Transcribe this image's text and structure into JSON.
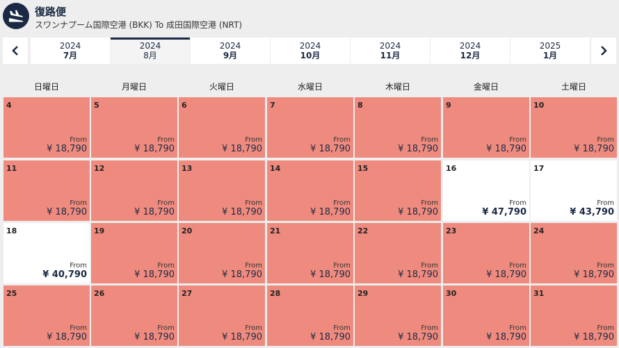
{
  "header": {
    "title": "復路便",
    "route": "スワンナプーム国際空港 (BKK) To 成田国際空港 (NRT)"
  },
  "months": [
    {
      "year": "2024",
      "month": "7月",
      "active": false
    },
    {
      "year": "2024",
      "month": "8月",
      "active": true
    },
    {
      "year": "2024",
      "month": "9月",
      "active": false
    },
    {
      "year": "2024",
      "month": "10月",
      "active": false
    },
    {
      "year": "2024",
      "month": "11月",
      "active": false
    },
    {
      "year": "2024",
      "month": "12月",
      "active": false
    },
    {
      "year": "2025",
      "month": "1月",
      "active": false
    }
  ],
  "weekdays": [
    "日曜日",
    "月曜日",
    "火曜日",
    "水曜日",
    "木曜日",
    "金曜日",
    "土曜日"
  ],
  "from_label": "From",
  "colors": {
    "navy": "#1b2a44",
    "unavailable": "#ef8b7e",
    "available": "#ffffff"
  },
  "weeks": [
    [
      {
        "day": "4",
        "price": "¥ 18,790",
        "available": false
      },
      {
        "day": "5",
        "price": "¥ 18,790",
        "available": false
      },
      {
        "day": "6",
        "price": "¥ 18,790",
        "available": false
      },
      {
        "day": "7",
        "price": "¥ 18,790",
        "available": false
      },
      {
        "day": "8",
        "price": "¥ 18,790",
        "available": false
      },
      {
        "day": "9",
        "price": "¥ 18,790",
        "available": false
      },
      {
        "day": "10",
        "price": "¥ 18,790",
        "available": false
      }
    ],
    [
      {
        "day": "11",
        "price": "¥ 18,790",
        "available": false
      },
      {
        "day": "12",
        "price": "¥ 18,790",
        "available": false
      },
      {
        "day": "13",
        "price": "¥ 18,790",
        "available": false
      },
      {
        "day": "14",
        "price": "¥ 18,790",
        "available": false
      },
      {
        "day": "15",
        "price": "¥ 18,790",
        "available": false
      },
      {
        "day": "16",
        "price": "¥ 47,790",
        "available": true
      },
      {
        "day": "17",
        "price": "¥ 43,790",
        "available": true
      }
    ],
    [
      {
        "day": "18",
        "price": "¥ 40,790",
        "available": true
      },
      {
        "day": "19",
        "price": "¥ 18,790",
        "available": false
      },
      {
        "day": "20",
        "price": "¥ 18,790",
        "available": false
      },
      {
        "day": "21",
        "price": "¥ 18,790",
        "available": false
      },
      {
        "day": "22",
        "price": "¥ 18,790",
        "available": false
      },
      {
        "day": "23",
        "price": "¥ 18,790",
        "available": false
      },
      {
        "day": "24",
        "price": "¥ 18,790",
        "available": false
      }
    ],
    [
      {
        "day": "25",
        "price": "¥ 18,790",
        "available": false
      },
      {
        "day": "26",
        "price": "¥ 18,790",
        "available": false
      },
      {
        "day": "27",
        "price": "¥ 18,790",
        "available": false
      },
      {
        "day": "28",
        "price": "¥ 18,790",
        "available": false
      },
      {
        "day": "29",
        "price": "¥ 18,790",
        "available": false
      },
      {
        "day": "30",
        "price": "¥ 18,790",
        "available": false
      },
      {
        "day": "31",
        "price": "¥ 18,790",
        "available": false
      }
    ]
  ]
}
